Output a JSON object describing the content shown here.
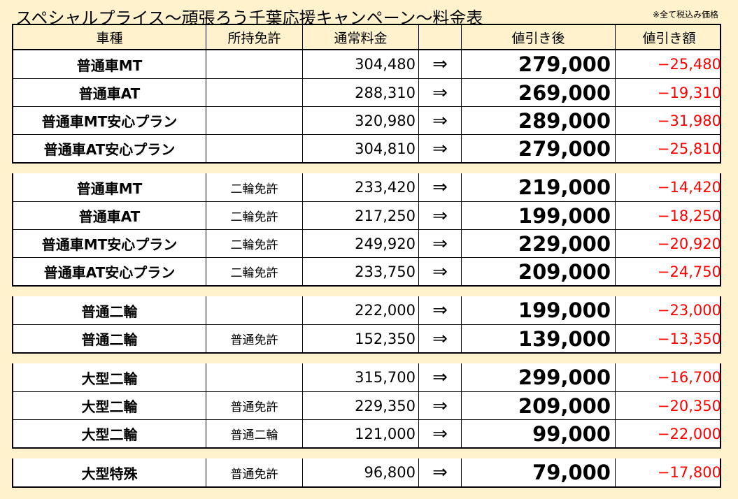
{
  "title": "スペシャルプライス～頑張ろう千葉応援キャンペーン～料金表",
  "note": "※全て税込み価格",
  "headers": {
    "type": "車種",
    "license": "所持免許",
    "regular": "通常料金",
    "arrow": "",
    "discounted": "値引き後",
    "diff": "値引き額"
  },
  "colors": {
    "background": "#FFF2CC",
    "discount_text": "#FF0000"
  },
  "groups": [
    {
      "rows": [
        {
          "type": "普通車MT",
          "license": "",
          "regular": "304,480",
          "arrow": "⇒",
          "discounted": "279,000",
          "diff": "−25,480"
        },
        {
          "type": "普通車AT",
          "license": "",
          "regular": "288,310",
          "arrow": "⇒",
          "discounted": "269,000",
          "diff": "−19,310"
        },
        {
          "type": "普通車MT安心プラン",
          "license": "",
          "regular": "320,980",
          "arrow": "⇒",
          "discounted": "289,000",
          "diff": "−31,980"
        },
        {
          "type": "普通車AT安心プラン",
          "license": "",
          "regular": "304,810",
          "arrow": "⇒",
          "discounted": "279,000",
          "diff": "−25,810"
        }
      ]
    },
    {
      "rows": [
        {
          "type": "普通車MT",
          "license": "二輪免許",
          "regular": "233,420",
          "arrow": "⇒",
          "discounted": "219,000",
          "diff": "−14,420"
        },
        {
          "type": "普通車AT",
          "license": "二輪免許",
          "regular": "217,250",
          "arrow": "⇒",
          "discounted": "199,000",
          "diff": "−18,250"
        },
        {
          "type": "普通車MT安心プラン",
          "license": "二輪免許",
          "regular": "249,920",
          "arrow": "⇒",
          "discounted": "229,000",
          "diff": "−20,920"
        },
        {
          "type": "普通車AT安心プラン",
          "license": "二輪免許",
          "regular": "233,750",
          "arrow": "⇒",
          "discounted": "209,000",
          "diff": "−24,750"
        }
      ]
    },
    {
      "rows": [
        {
          "type": "普通二輪",
          "license": "",
          "regular": "222,000",
          "arrow": "⇒",
          "discounted": "199,000",
          "diff": "−23,000"
        },
        {
          "type": "普通二輪",
          "license": "普通免許",
          "regular": "152,350",
          "arrow": "⇒",
          "discounted": "139,000",
          "diff": "−13,350"
        }
      ]
    },
    {
      "rows": [
        {
          "type": "大型二輪",
          "license": "",
          "regular": "315,700",
          "arrow": "⇒",
          "discounted": "299,000",
          "diff": "−16,700"
        },
        {
          "type": "大型二輪",
          "license": "普通免許",
          "regular": "229,350",
          "arrow": "⇒",
          "discounted": "209,000",
          "diff": "−20,350"
        },
        {
          "type": "大型二輪",
          "license": "普通二輪",
          "regular": "121,000",
          "arrow": "⇒",
          "discounted": "99,000",
          "diff": "−22,000"
        }
      ]
    },
    {
      "rows": [
        {
          "type": "大型特殊",
          "license": "普通免許",
          "regular": "96,800",
          "arrow": "⇒",
          "discounted": "79,000",
          "diff": "−17,800"
        }
      ]
    }
  ]
}
